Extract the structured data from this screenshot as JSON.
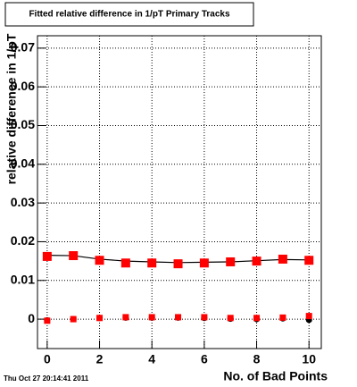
{
  "chart_data": {
    "type": "scatter",
    "title": "Fitted relative difference in 1/pT Primary Tracks",
    "x_label": "No. of Bad Points",
    "y_label": "relative difference in 1/pT",
    "timestamp": "Thu Oct 27 20:14:41 2011",
    "x": [
      0,
      1,
      2,
      3,
      4,
      5,
      6,
      7,
      8,
      9,
      10
    ],
    "series": [
      {
        "color": "#000000",
        "marker": "line",
        "values": [
          0.0165,
          0.0164,
          0.0155,
          0.015,
          0.0148,
          0.0146,
          0.0147,
          0.0148,
          0.0151,
          0.0154,
          0.0153
        ]
      },
      {
        "color": "#ff0000",
        "marker": "square",
        "values": [
          0.0162,
          0.0164,
          0.0152,
          0.0145,
          0.0145,
          0.0143,
          0.0145,
          0.0148,
          0.015,
          0.0155,
          0.0152
        ]
      },
      {
        "color": "#000000",
        "marker": "circle",
        "values": [
          -0.0003,
          0.0,
          0.0003,
          0.0004,
          0.0004,
          0.0004,
          0.0003,
          0.0001,
          0.0,
          0.0002,
          -0.0002
        ]
      },
      {
        "color": "#ff0000",
        "marker": "small-square",
        "values": [
          -0.0004,
          0.0,
          0.0003,
          0.0005,
          0.0005,
          0.0005,
          0.0005,
          0.0003,
          0.0003,
          0.0004,
          0.0008
        ]
      }
    ],
    "xlim": [
      -0.37,
      10.47
    ],
    "ylim": [
      -0.0076,
      0.0732
    ],
    "xticks": [
      0,
      2,
      4,
      6,
      8,
      10
    ],
    "yticks": [
      0,
      0.01,
      0.02,
      0.03,
      0.04,
      0.05,
      0.06,
      0.07
    ],
    "grid": true
  }
}
